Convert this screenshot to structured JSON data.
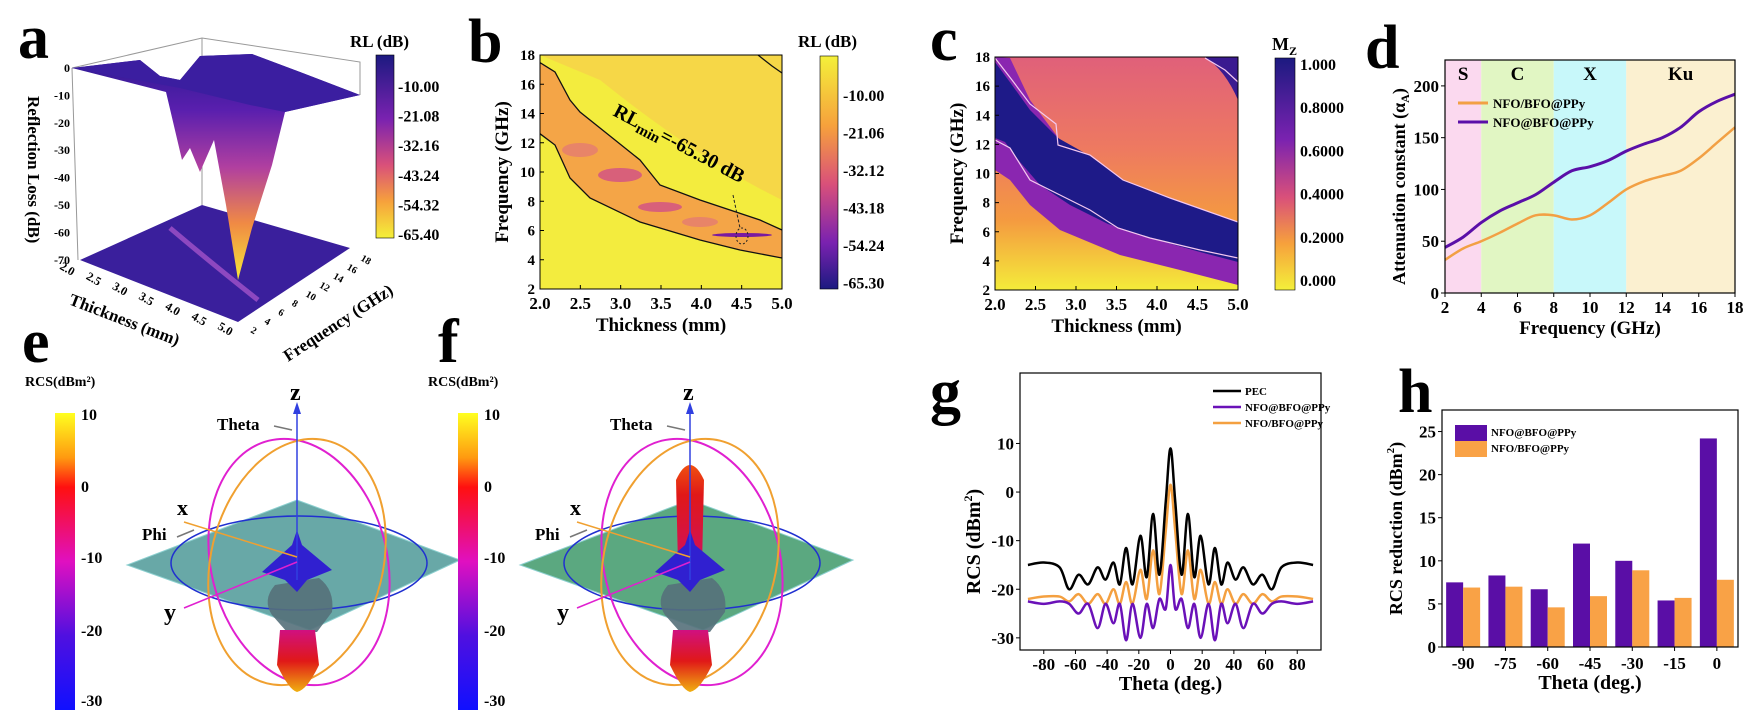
{
  "panels": {
    "a": {
      "letter": "a",
      "colorbar_title": "RL (dB)",
      "colorbar_ticks": [
        "-10.00",
        "-21.08",
        "-32.16",
        "-43.24",
        "-54.32",
        "-65.40"
      ],
      "zlabel": "Reflection Loss (dB)",
      "xlabel": "Thickness (mm)",
      "ylabel": "Frequency (GHz)",
      "zticks": [
        "0",
        "-10",
        "-20",
        "-30",
        "-40",
        "-50",
        "-60",
        "-70"
      ],
      "xticks": [
        "2.0",
        "2.5",
        "3.0",
        "3.5",
        "4.0",
        "4.5",
        "5.0"
      ],
      "yticks": [
        "2",
        "4",
        "6",
        "8",
        "10",
        "12",
        "14",
        "16",
        "18"
      ]
    },
    "b": {
      "letter": "b",
      "colorbar_title": "RL (dB)",
      "colorbar_ticks": [
        "-10.00",
        "-21.06",
        "-32.12",
        "-43.18",
        "-54.24",
        "-65.30"
      ],
      "annotation_main": "RL",
      "annotation_sub": "min",
      "annotation_rest": "=-65.30 dB"
    },
    "c": {
      "letter": "c",
      "colorbar_title_main": "M",
      "colorbar_title_sub": "Z",
      "colorbar_ticks": [
        "1.000",
        "0.8000",
        "0.6000",
        "0.4000",
        "0.2000",
        "0.000"
      ]
    },
    "d": {
      "letter": "d"
    },
    "e": {
      "letter": "e",
      "colorbar_title": "RCS(dBm²)",
      "colorbar_ticks": [
        "10",
        "0",
        "-10",
        "-20",
        "-30"
      ],
      "axis_z": "z",
      "axis_x": "x",
      "axis_y": "y",
      "theta": "Theta",
      "phi": "Phi"
    },
    "f": {
      "letter": "f",
      "colorbar_title": "RCS(dBm²)",
      "colorbar_ticks": [
        "10",
        "0",
        "-10",
        "-20",
        "-30"
      ],
      "axis_z": "z",
      "axis_x": "x",
      "axis_y": "y",
      "theta": "Theta",
      "phi": "Phi"
    },
    "g": {
      "letter": "g"
    },
    "h": {
      "letter": "h"
    }
  },
  "chart_data": [
    {
      "panel": "b",
      "type": "heatmap",
      "xlabel": "Thickness (mm)",
      "ylabel": "Frequency (GHz)",
      "xlim": [
        2.0,
        5.0
      ],
      "ylim": [
        2,
        18
      ],
      "xticks": [
        "2.0",
        "2.5",
        "3.0",
        "3.5",
        "4.0",
        "4.5",
        "5.0"
      ],
      "yticks": [
        "2",
        "4",
        "6",
        "8",
        "10",
        "12",
        "14",
        "16",
        "18"
      ],
      "colorscale": [
        "#f2ef3a",
        "#f7a43c",
        "#c03a9a",
        "#1a1878"
      ],
      "min_point": {
        "x": 4.5,
        "y": 5.7,
        "value": -65.3
      }
    },
    {
      "panel": "c",
      "type": "heatmap",
      "xlabel": "Thickness (mm)",
      "ylabel": "Frequency (GHz)",
      "xlim": [
        2.0,
        5.0
      ],
      "ylim": [
        2,
        18
      ],
      "xticks": [
        "2.0",
        "2.5",
        "3.0",
        "3.5",
        "4.0",
        "4.5",
        "5.0"
      ],
      "yticks": [
        "2",
        "4",
        "6",
        "8",
        "10",
        "12",
        "14",
        "16",
        "18"
      ],
      "colorscale": [
        "#f2ef3a",
        "#f7a43c",
        "#c03a9a",
        "#1a1878"
      ]
    },
    {
      "panel": "d",
      "type": "line",
      "xlabel": "Frequency (GHz)",
      "ylabel": "Attenuation constant (α",
      "ylabel_sub": "A",
      "ylabel_end": ")",
      "xlim": [
        2,
        18
      ],
      "ylim": [
        0,
        225
      ],
      "xticks": [
        2,
        4,
        6,
        8,
        10,
        12,
        14,
        16,
        18
      ],
      "yticks": [
        0,
        50,
        100,
        150,
        200
      ],
      "bands": [
        {
          "label": "S",
          "from": 2,
          "to": 4,
          "color": "#fbd9ef"
        },
        {
          "label": "C",
          "from": 4,
          "to": 8,
          "color": "#e1f6c3"
        },
        {
          "label": "X",
          "from": 8,
          "to": 12,
          "color": "#c8f8fa"
        },
        {
          "label": "Ku",
          "from": 12,
          "to": 18,
          "color": "#fbf0d0"
        }
      ],
      "legend": "top-left",
      "series": [
        {
          "name": "NFO/BFO@PPy",
          "color": "#f2a044",
          "x": [
            2,
            3,
            4,
            5,
            6,
            7,
            8,
            9,
            10,
            11,
            12,
            13,
            14,
            15,
            16,
            17,
            18
          ],
          "y": [
            32,
            43,
            50,
            58,
            67,
            75,
            75,
            71,
            75,
            87,
            100,
            108,
            113,
            118,
            130,
            145,
            160
          ]
        },
        {
          "name": "NFO@BFO@PPy",
          "color": "#5a0fa8",
          "x": [
            2,
            3,
            4,
            5,
            6,
            7,
            8,
            9,
            10,
            11,
            12,
            13,
            14,
            15,
            16,
            17,
            18
          ],
          "y": [
            44,
            54,
            68,
            79,
            87,
            95,
            107,
            118,
            122,
            128,
            137,
            144,
            150,
            160,
            175,
            185,
            192
          ]
        }
      ]
    },
    {
      "panel": "g",
      "type": "line",
      "xlabel": "Theta (deg.)",
      "ylabel": "RCS (dBm",
      "ylabel_sup": "2",
      "ylabel_end": ")",
      "xlim": [
        -95,
        95
      ],
      "ylim": [
        -32.5,
        24.5
      ],
      "xticks": [
        -80,
        -60,
        -40,
        -20,
        0,
        20,
        40,
        60,
        80
      ],
      "yticks": [
        -30,
        -20,
        -10,
        0,
        10
      ],
      "legend": "top-right",
      "x": [
        -90,
        -80,
        -70,
        -64,
        -58,
        -52,
        -46,
        -41,
        -36,
        -32,
        -28,
        -24,
        -19,
        -15,
        -11,
        -7,
        -3,
        0,
        3,
        7,
        11,
        15,
        19,
        24,
        28,
        32,
        36,
        41,
        46,
        52,
        58,
        64,
        70,
        80,
        90
      ],
      "series": [
        {
          "name": "PEC",
          "color": "#000000",
          "y": [
            -15,
            -14.5,
            -15.5,
            -20,
            -17,
            -19,
            -15.5,
            -18,
            -14.5,
            -19,
            -11.5,
            -19,
            -9,
            -17.5,
            -4.5,
            -17,
            -2,
            9,
            -2,
            -17,
            -4.5,
            -17.5,
            -9,
            -19,
            -11.5,
            -19,
            -14.5,
            -18,
            -15.5,
            -19,
            -17,
            -20,
            -15.5,
            -14.5,
            -15
          ]
        },
        {
          "name": "NFO@BFO@PPy",
          "color": "#6a11b8",
          "y": [
            -22.5,
            -23,
            -22.5,
            -23,
            -25,
            -23,
            -28,
            -23,
            -27,
            -23,
            -30.5,
            -23,
            -30,
            -23,
            -28,
            -22,
            -24,
            -15,
            -24,
            -22,
            -28,
            -23,
            -30,
            -23,
            -30.5,
            -23,
            -27,
            -23,
            -28,
            -23,
            -25,
            -23,
            -22.5,
            -23,
            -22.5
          ]
        },
        {
          "name": "NFO/BFO@PPy",
          "color": "#f4a040",
          "y": [
            -22,
            -21.5,
            -21.5,
            -22.5,
            -21,
            -23,
            -21,
            -23,
            -20,
            -23,
            -18.5,
            -23,
            -16,
            -22,
            -12,
            -21,
            -8,
            1.5,
            -8,
            -21,
            -12,
            -22,
            -16,
            -23,
            -18.5,
            -23,
            -20,
            -23,
            -21,
            -23,
            -21,
            -22.5,
            -21.5,
            -21.5,
            -22
          ]
        }
      ]
    },
    {
      "panel": "h",
      "type": "bar",
      "xlabel": "Theta (deg.)",
      "ylabel": "RCS reduction (dBm",
      "ylabel_sup": "2",
      "ylabel_end": ")",
      "categories": [
        "-90",
        "-75",
        "-60",
        "-45",
        "-30",
        "-15",
        "0"
      ],
      "ylim": [
        0,
        27.5
      ],
      "yticks": [
        0,
        5,
        10,
        15,
        20,
        25
      ],
      "legend": "top-left",
      "series": [
        {
          "name": "NFO@BFO@PPy",
          "color": "#5a0ea6",
          "values": [
            7.5,
            8.3,
            6.7,
            12.0,
            10.0,
            5.4,
            24.2
          ]
        },
        {
          "name": "NFO/BFO@PPy",
          "color": "#f9a246",
          "values": [
            6.9,
            7.0,
            4.6,
            5.9,
            8.9,
            5.7,
            7.8
          ]
        }
      ]
    }
  ]
}
